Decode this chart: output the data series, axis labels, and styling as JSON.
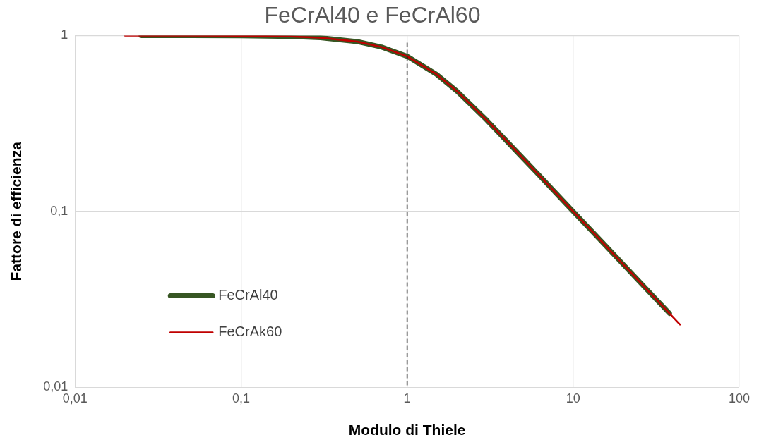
{
  "chart_data": {
    "type": "line",
    "title": "FeCrAl40 e FeCrAl60",
    "xlabel": "Modulo di Thiele",
    "ylabel": "Fattore di efficienza",
    "log": "xy",
    "xlim": [
      0.01,
      100
    ],
    "ylim": [
      0.01,
      1
    ],
    "xticks": [
      {
        "value": 0.01,
        "label": "0,01"
      },
      {
        "value": 0.1,
        "label": "0,1"
      },
      1,
      10,
      100
    ],
    "yticks": [
      {
        "value": 0.01,
        "label": "0,01"
      },
      {
        "value": 0.1,
        "label": "0,1"
      },
      1
    ],
    "grid": true,
    "legend": "left",
    "marker": "none",
    "line_style": "solid",
    "ref_lines": [
      {
        "axis": "x",
        "value": 1,
        "color": "#000000",
        "line_style": "dashed"
      }
    ],
    "series": [
      {
        "name": "FeCrAl40",
        "color": "#375623",
        "x": [
          0.025,
          0.05,
          0.1,
          0.2,
          0.3,
          0.5,
          0.7,
          1,
          1.5,
          2,
          3,
          5,
          7,
          10,
          15,
          20,
          30,
          38
        ],
        "values": [
          1,
          0.999,
          0.997,
          0.987,
          0.971,
          0.924,
          0.861,
          0.762,
          0.603,
          0.482,
          0.332,
          0.2,
          0.143,
          0.1,
          0.0667,
          0.05,
          0.0333,
          0.0263
        ]
      },
      {
        "name": "FeCrAk60",
        "color": "#c00000",
        "x": [
          0.02,
          0.05,
          0.1,
          0.2,
          0.3,
          0.5,
          0.7,
          1,
          1.5,
          2,
          3,
          5,
          7,
          10,
          15,
          20,
          30,
          44
        ],
        "values": [
          1,
          0.999,
          0.997,
          0.987,
          0.971,
          0.924,
          0.861,
          0.762,
          0.603,
          0.482,
          0.332,
          0.2,
          0.143,
          0.1,
          0.0667,
          0.05,
          0.0333,
          0.0227
        ]
      }
    ]
  }
}
